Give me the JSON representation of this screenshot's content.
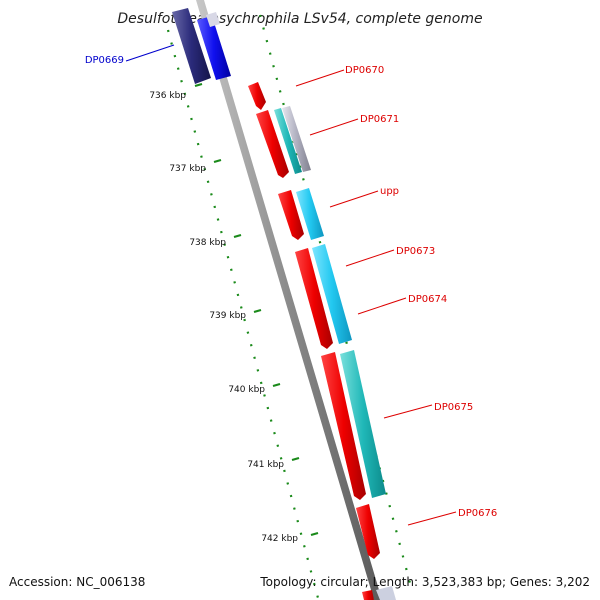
{
  "title": "Desulfotalea psychrophila LSv54, complete genome",
  "accession": "Accession: NC_006138",
  "topology": "Topology: circular; Length: 3,523,383 bp; Genes: 3,202",
  "colors": {
    "backbone": "#8a8a8a",
    "forward_gene": "#ee0000",
    "reverse_gene_navy": "#2a2a7a",
    "reverse_gene_blue": "#1010ee",
    "cyan_track": "#22c8f0",
    "teal_track": "#20b8b8",
    "grey_track": "#b0b0c0",
    "gc_dots": "#1a8a1a",
    "label_red": "#dd0000",
    "label_blue": "#0000cc"
  },
  "scale_labels": [
    "736 kbp",
    "737 kbp",
    "738 kbp",
    "739 kbp",
    "740 kbp",
    "741 kbp",
    "742 kbp"
  ],
  "genes": [
    {
      "name": "DP0669",
      "color": "#0000cc"
    },
    {
      "name": "DP0670",
      "color": "#dd0000"
    },
    {
      "name": "DP0671",
      "color": "#dd0000"
    },
    {
      "name": "upp",
      "color": "#dd0000"
    },
    {
      "name": "DP0673",
      "color": "#dd0000"
    },
    {
      "name": "DP0674",
      "color": "#dd0000"
    },
    {
      "name": "DP0675",
      "color": "#dd0000"
    },
    {
      "name": "DP0676",
      "color": "#dd0000"
    }
  ]
}
